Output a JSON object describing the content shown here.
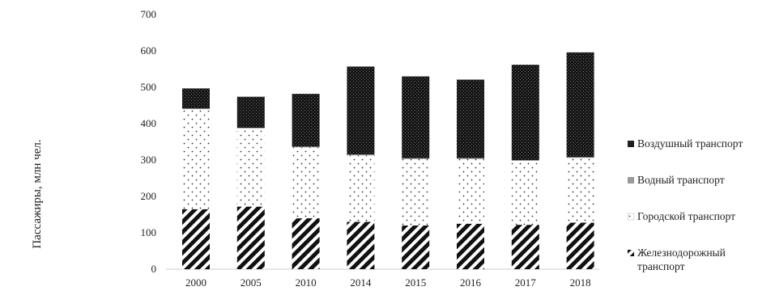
{
  "chart_data": {
    "type": "bar",
    "stacked": true,
    "categories": [
      "2000",
      "2005",
      "2010",
      "2014",
      "2015",
      "2016",
      "2017",
      "2018"
    ],
    "series": [
      {
        "name": "Железнодорожный транспорт",
        "pattern": "diagonal-stripes",
        "values": [
          165,
          172,
          140,
          130,
          120,
          125,
          122,
          128
        ]
      },
      {
        "name": "Городской транспорт",
        "pattern": "dots",
        "values": [
          275,
          215,
          195,
          183,
          183,
          178,
          176,
          178
        ]
      },
      {
        "name": "Водный транспорт",
        "pattern": "solid-gray",
        "values": [
          2,
          2,
          2,
          2,
          2,
          2,
          2,
          2
        ]
      },
      {
        "name": "Воздушный транспорт",
        "pattern": "dark-dense",
        "values": [
          55,
          85,
          145,
          242,
          225,
          216,
          262,
          288
        ]
      }
    ],
    "ylabel": "Пассажиры, млн чел.",
    "xlabel": "",
    "ylim": [
      0,
      700
    ],
    "yticks": [
      "0",
      "100",
      "200",
      "300",
      "400",
      "500",
      "600",
      "700"
    ],
    "grid": false,
    "legend": {
      "position": "right",
      "items": [
        {
          "label": "Воздушный транспорт",
          "marker": "dark-dense"
        },
        {
          "label": "Водный транспорт",
          "marker": "solid-gray"
        },
        {
          "label": "Городской транспорт",
          "marker": "dots"
        },
        {
          "label": "Железнодорожный",
          "label2": "транспорт",
          "marker": "diagonal-stripes"
        }
      ]
    }
  }
}
